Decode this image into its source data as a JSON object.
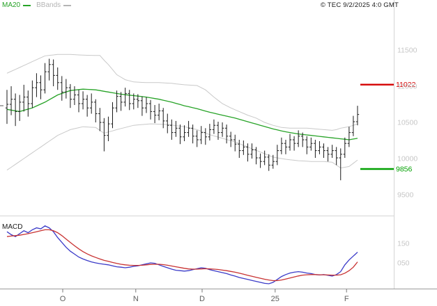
{
  "header": {
    "copyright": "© TEC 9/2/2025 4:0 GMT",
    "legend": [
      {
        "label": "MA20",
        "color": "#27a327"
      },
      {
        "label": "BBands",
        "color": "#b4b4b4"
      }
    ]
  },
  "macd_panel_label": "MACD",
  "chart_data": [
    {
      "type": "candlestick",
      "panel": "price",
      "ylim": [
        9350,
        11750
      ],
      "bar_color": "#1a1a1a",
      "yticks": [
        {
          "label": "11500",
          "value": 11500
        },
        {
          "label": "11000",
          "value": 11000
        },
        {
          "label": "10500",
          "value": 10500
        },
        {
          "label": "10000",
          "value": 10000
        },
        {
          "label": "9500",
          "value": 9500
        }
      ],
      "hlines": [
        {
          "label": "11022",
          "value": 11022,
          "color": "#d40000"
        },
        {
          "label": "9856",
          "value": 9856,
          "color": "#00a000"
        }
      ],
      "xticks": [
        {
          "label": "O",
          "index": 13.2
        },
        {
          "label": "N",
          "index": 30.5
        },
        {
          "label": "D",
          "index": 46.2
        },
        {
          "label": "25",
          "index": 63.5
        },
        {
          "label": "F",
          "index": 80.4
        }
      ],
      "bars": [
        [
          10700,
          10950,
          10480,
          10750
        ],
        [
          10750,
          11000,
          10600,
          10820
        ],
        [
          10820,
          10900,
          10450,
          10650
        ],
        [
          10650,
          10880,
          10520,
          10780
        ],
        [
          10780,
          11020,
          10650,
          10850
        ],
        [
          10850,
          10940,
          10580,
          10760
        ],
        [
          10760,
          11080,
          10700,
          10980
        ],
        [
          10980,
          11180,
          10850,
          11050
        ],
        [
          11050,
          11150,
          10820,
          10950
        ],
        [
          10950,
          11320,
          10900,
          11200
        ],
        [
          11200,
          11380,
          11080,
          11300
        ],
        [
          11300,
          11370,
          11000,
          11150
        ],
        [
          11150,
          11260,
          10950,
          11050
        ],
        [
          11050,
          11140,
          10800,
          10920
        ],
        [
          10920,
          11100,
          10830,
          10980
        ],
        [
          10980,
          11030,
          10700,
          10820
        ],
        [
          10820,
          11000,
          10740,
          10880
        ],
        [
          10880,
          10950,
          10640,
          10760
        ],
        [
          10760,
          10930,
          10680,
          10820
        ],
        [
          10820,
          10880,
          10580,
          10700
        ],
        [
          10700,
          10900,
          10620,
          10780
        ],
        [
          10780,
          10820,
          10500,
          10620
        ],
        [
          10620,
          10700,
          10380,
          10500
        ],
        [
          10500,
          10560,
          10100,
          10320
        ],
        [
          10320,
          10580,
          10240,
          10480
        ],
        [
          10480,
          10780,
          10420,
          10700
        ],
        [
          10700,
          10940,
          10640,
          10860
        ],
        [
          10860,
          10920,
          10660,
          10780
        ],
        [
          10780,
          10980,
          10720,
          10900
        ],
        [
          10900,
          10950,
          10670,
          10760
        ],
        [
          10760,
          10900,
          10680,
          10820
        ],
        [
          10820,
          10890,
          10700,
          10800
        ],
        [
          10800,
          10860,
          10590,
          10700
        ],
        [
          10700,
          10850,
          10630,
          10760
        ],
        [
          10760,
          10810,
          10540,
          10650
        ],
        [
          10650,
          10740,
          10490,
          10600
        ],
        [
          10600,
          10760,
          10530,
          10660
        ],
        [
          10660,
          10700,
          10420,
          10520
        ],
        [
          10520,
          10620,
          10350,
          10460
        ],
        [
          10460,
          10540,
          10260,
          10360
        ],
        [
          10360,
          10520,
          10300,
          10420
        ],
        [
          10420,
          10470,
          10200,
          10300
        ],
        [
          10300,
          10460,
          10240,
          10360
        ],
        [
          10360,
          10520,
          10300,
          10420
        ],
        [
          10420,
          10470,
          10210,
          10310
        ],
        [
          10310,
          10390,
          10160,
          10260
        ],
        [
          10260,
          10450,
          10200,
          10360
        ],
        [
          10360,
          10420,
          10190,
          10300
        ],
        [
          10300,
          10480,
          10250,
          10400
        ],
        [
          10400,
          10540,
          10340,
          10460
        ],
        [
          10460,
          10510,
          10260,
          10360
        ],
        [
          10360,
          10500,
          10300,
          10420
        ],
        [
          10420,
          10470,
          10210,
          10310
        ],
        [
          10310,
          10370,
          10160,
          10260
        ],
        [
          10260,
          10330,
          10100,
          10200
        ],
        [
          10200,
          10260,
          10010,
          10110
        ],
        [
          10110,
          10250,
          10050,
          10160
        ],
        [
          10160,
          10210,
          9960,
          10060
        ],
        [
          10060,
          10210,
          10000,
          10120
        ],
        [
          10120,
          10160,
          9920,
          10010
        ],
        [
          10010,
          10070,
          9870,
          9960
        ],
        [
          9960,
          10110,
          9910,
          10020
        ],
        [
          10020,
          10060,
          9830,
          9910
        ],
        [
          9910,
          10050,
          9860,
          9960
        ],
        [
          9960,
          10190,
          9910,
          10110
        ],
        [
          10110,
          10290,
          10060,
          10210
        ],
        [
          10210,
          10260,
          10060,
          10160
        ],
        [
          10160,
          10340,
          10110,
          10260
        ],
        [
          10260,
          10310,
          10110,
          10210
        ],
        [
          10210,
          10390,
          10160,
          10310
        ],
        [
          10310,
          10360,
          10160,
          10260
        ],
        [
          10260,
          10310,
          10060,
          10160
        ],
        [
          10160,
          10290,
          10110,
          10210
        ],
        [
          10210,
          10260,
          10010,
          10110
        ],
        [
          10110,
          10240,
          10060,
          10160
        ],
        [
          10160,
          10210,
          10010,
          10110
        ],
        [
          10110,
          10160,
          9960,
          10060
        ],
        [
          10060,
          10190,
          10010,
          10110
        ],
        [
          10110,
          10160,
          9910,
          10010
        ],
        [
          10010,
          10140,
          9700,
          10060
        ],
        [
          10060,
          10290,
          10010,
          10210
        ],
        [
          10210,
          10440,
          10160,
          10360
        ],
        [
          10360,
          10590,
          10310,
          10510
        ],
        [
          10510,
          10730,
          10460,
          10610
        ]
      ],
      "overlays": [
        {
          "name": "MA20",
          "color": "#27a327",
          "width": 1.3,
          "values": [
            10680,
            10670,
            10660,
            10650,
            10667,
            10684,
            10700,
            10727,
            10754,
            10780,
            10813,
            10846,
            10880,
            10900,
            10920,
            10940,
            10947,
            10954,
            10960,
            10957,
            10954,
            10950,
            10940,
            10930,
            10920,
            10910,
            10900,
            10890,
            10883,
            10877,
            10870,
            10863,
            10857,
            10850,
            10840,
            10830,
            10820,
            10807,
            10793,
            10780,
            10763,
            10747,
            10730,
            10717,
            10703,
            10690,
            10673,
            10657,
            10640,
            10627,
            10613,
            10600,
            10587,
            10573,
            10560,
            10543,
            10527,
            10510,
            10493,
            10477,
            10460,
            10443,
            10427,
            10410,
            10397,
            10383,
            10370,
            10360,
            10350,
            10340,
            10333,
            10327,
            10320,
            10313,
            10307,
            10300,
            10293,
            10287,
            10280,
            10273,
            10267,
            10260,
            10270,
            10280
          ]
        },
        {
          "name": "BB upper",
          "color": "#c9c9c9",
          "width": 1,
          "values": [
            11180,
            11207,
            11233,
            11260,
            11287,
            11313,
            11340,
            11367,
            11393,
            11420,
            11427,
            11433,
            11440,
            11440,
            11440,
            11440,
            11437,
            11433,
            11430,
            11428,
            11427,
            11425,
            11425,
            11360,
            11300,
            11230,
            11160,
            11125,
            11090,
            11075,
            11060,
            11057,
            11053,
            11050,
            11050,
            11050,
            11050,
            11047,
            11043,
            11040,
            11033,
            11027,
            11020,
            11017,
            11013,
            11010,
            10980,
            10950,
            10900,
            10850,
            10805,
            10760,
            10730,
            10700,
            10675,
            10650,
            10625,
            10600,
            10580,
            10560,
            10530,
            10500,
            10480,
            10460,
            10445,
            10430,
            10425,
            10420,
            10420,
            10420,
            10420,
            10420,
            10415,
            10410,
            10405,
            10400,
            10395,
            10390,
            10400,
            10420,
            10430,
            10440,
            10460,
            10480
          ]
        },
        {
          "name": "BB lower",
          "color": "#c9c9c9",
          "width": 1,
          "values": [
            9840,
            9880,
            9920,
            9960,
            10000,
            10040,
            10080,
            10120,
            10160,
            10200,
            10240,
            10280,
            10320,
            10347,
            10373,
            10400,
            10413,
            10427,
            10440,
            10437,
            10433,
            10430,
            10390,
            10350,
            10367,
            10383,
            10400,
            10415,
            10430,
            10445,
            10460,
            10465,
            10470,
            10475,
            10480,
            10478,
            10475,
            10473,
            10470,
            10463,
            10455,
            10448,
            10440,
            10427,
            10413,
            10400,
            10377,
            10353,
            10330,
            10313,
            10297,
            10280,
            10263,
            10247,
            10230,
            10207,
            10183,
            10160,
            10137,
            10113,
            10090,
            10067,
            10043,
            10020,
            10010,
            10000,
            9990,
            9983,
            9977,
            9970,
            9967,
            9963,
            9960,
            9960,
            9960,
            9960,
            9955,
            9950,
            9910,
            9870,
            9880,
            9890,
            9935,
            9980
          ]
        }
      ]
    },
    {
      "type": "line",
      "panel": "macd",
      "ylim": [
        -0.82,
        2.57
      ],
      "yticks": [
        {
          "label": "150",
          "value": 1.5
        },
        {
          "label": "050",
          "value": 0.5
        }
      ],
      "series": [
        {
          "name": "MACD",
          "color": "#3a3ac8",
          "values": [
            2.1,
            1.95,
            1.85,
            2.0,
            2.15,
            2.05,
            2.2,
            2.3,
            2.25,
            2.4,
            2.3,
            2.1,
            1.8,
            1.55,
            1.3,
            1.1,
            0.95,
            0.8,
            0.7,
            0.62,
            0.55,
            0.5,
            0.46,
            0.43,
            0.4,
            0.35,
            0.3,
            0.28,
            0.25,
            0.28,
            0.32,
            0.35,
            0.4,
            0.45,
            0.5,
            0.48,
            0.4,
            0.32,
            0.25,
            0.18,
            0.12,
            0.1,
            0.08,
            0.1,
            0.15,
            0.2,
            0.25,
            0.22,
            0.15,
            0.1,
            0.05,
            0.0,
            -0.05,
            -0.12,
            -0.18,
            -0.25,
            -0.3,
            -0.35,
            -0.4,
            -0.45,
            -0.5,
            -0.55,
            -0.57,
            -0.5,
            -0.35,
            -0.2,
            -0.1,
            -0.02,
            0.02,
            0.05,
            0.02,
            -0.02,
            -0.05,
            -0.1,
            -0.12,
            -0.1,
            -0.14,
            -0.18,
            -0.1,
            0.05,
            0.4,
            0.65,
            0.85,
            1.05
          ]
        },
        {
          "name": "Signal",
          "color": "#c83232",
          "values": [
            1.85,
            1.88,
            1.9,
            1.92,
            1.96,
            2.0,
            2.05,
            2.1,
            2.15,
            2.2,
            2.2,
            2.15,
            2.05,
            1.9,
            1.72,
            1.55,
            1.38,
            1.22,
            1.08,
            0.96,
            0.86,
            0.78,
            0.7,
            0.63,
            0.58,
            0.52,
            0.47,
            0.43,
            0.4,
            0.38,
            0.37,
            0.37,
            0.38,
            0.4,
            0.42,
            0.43,
            0.43,
            0.41,
            0.38,
            0.34,
            0.3,
            0.26,
            0.22,
            0.19,
            0.18,
            0.18,
            0.19,
            0.2,
            0.19,
            0.18,
            0.16,
            0.13,
            0.1,
            0.06,
            0.02,
            -0.03,
            -0.08,
            -0.14,
            -0.19,
            -0.24,
            -0.29,
            -0.34,
            -0.38,
            -0.41,
            -0.41,
            -0.38,
            -0.33,
            -0.28,
            -0.22,
            -0.17,
            -0.13,
            -0.11,
            -0.1,
            -0.1,
            -0.11,
            -0.11,
            -0.12,
            -0.13,
            -0.13,
            -0.11,
            -0.03,
            0.1,
            0.28,
            0.55
          ]
        }
      ]
    }
  ]
}
